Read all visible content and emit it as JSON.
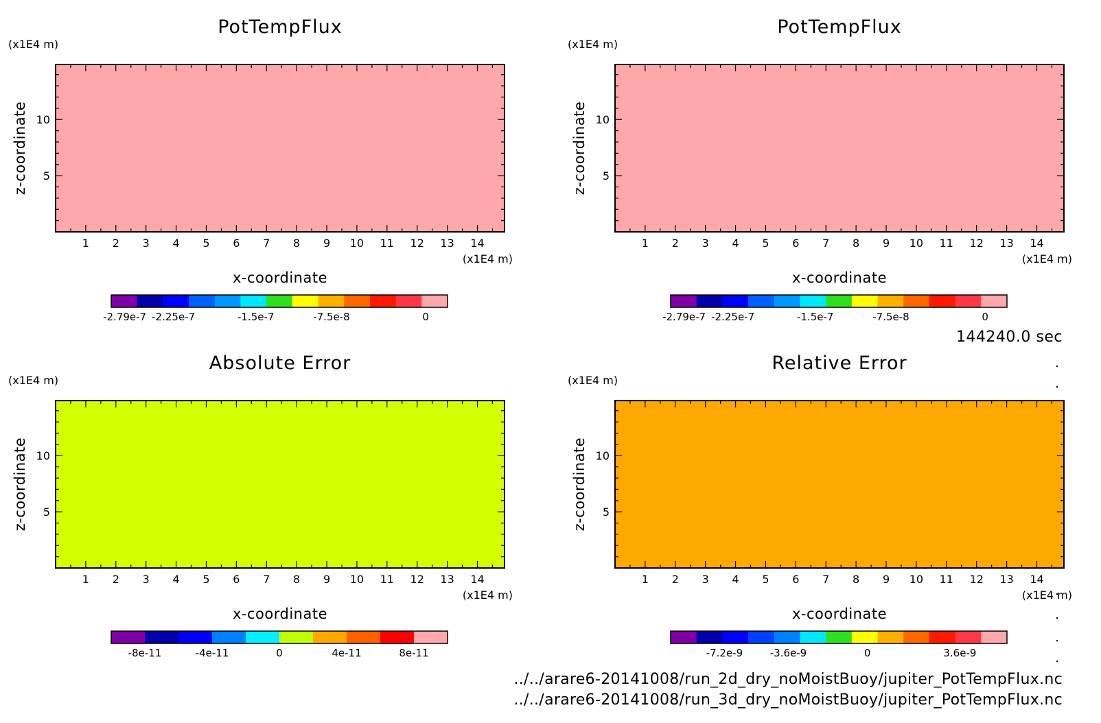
{
  "colors": {
    "pink": "#ffa8ac",
    "yellow_green": "#d4ff00",
    "orange": "#ffa800",
    "frame": "#000000"
  },
  "time_label": "144240.0 sec",
  "file_paths": [
    "../../arare6-20141008/run_2d_dry_noMoistBuoy/jupiter_PotTempFlux.nc",
    "../../arare6-20141008/run_3d_dry_noMoistBuoy/jupiter_PotTempFlux.nc"
  ],
  "chart_data": [
    {
      "type": "heatmap",
      "title": "PotTempFlux",
      "xlabel": "x-coordinate",
      "ylabel": "z-coordinate",
      "x_unit": "(x1E4 m)",
      "y_unit": "(x1E4 m)",
      "xlim": [
        0,
        14.9
      ],
      "ylim": [
        0,
        14.9
      ],
      "x_ticks": [
        "1",
        "2",
        "3",
        "4",
        "5",
        "6",
        "7",
        "8",
        "9",
        "10",
        "11",
        "12",
        "13",
        "14"
      ],
      "y_ticks": [
        "5",
        "10"
      ],
      "field_color": "#ffa8ac",
      "field_value": 0,
      "colorbar": {
        "colors": [
          "#8000a8",
          "#0000aa",
          "#0000ff",
          "#0060ff",
          "#0098ff",
          "#00e8ff",
          "#30e020",
          "#ffff00",
          "#ffb000",
          "#ff6800",
          "#ff1800",
          "#ff3848",
          "#ffa8ac"
        ],
        "labels": [
          "-2.79e-7",
          "-2.25e-7",
          "-1.5e-7",
          "-7.5e-8",
          "0"
        ]
      }
    },
    {
      "type": "heatmap",
      "title": "PotTempFlux",
      "xlabel": "x-coordinate",
      "ylabel": "z-coordinate",
      "x_unit": "(x1E4 m)",
      "y_unit": "(x1E4 m)",
      "xlim": [
        0,
        14.9
      ],
      "ylim": [
        0,
        14.9
      ],
      "x_ticks": [
        "1",
        "2",
        "3",
        "4",
        "5",
        "6",
        "7",
        "8",
        "9",
        "10",
        "11",
        "12",
        "13",
        "14"
      ],
      "y_ticks": [
        "5",
        "10"
      ],
      "field_color": "#ffa8ac",
      "field_value": 0,
      "colorbar": {
        "colors": [
          "#8000a8",
          "#0000aa",
          "#0000ff",
          "#0060ff",
          "#0098ff",
          "#00e8ff",
          "#30e020",
          "#ffff00",
          "#ffb000",
          "#ff6800",
          "#ff1800",
          "#ff3848",
          "#ffa8ac"
        ],
        "labels": [
          "-2.79e-7",
          "-2.25e-7",
          "-1.5e-7",
          "-7.5e-8",
          "0"
        ]
      }
    },
    {
      "type": "heatmap",
      "title": "Absolute Error",
      "xlabel": "x-coordinate",
      "ylabel": "z-coordinate",
      "x_unit": "(x1E4 m)",
      "y_unit": "(x1E4 m)",
      "xlim": [
        0,
        14.9
      ],
      "ylim": [
        0,
        14.9
      ],
      "x_ticks": [
        "1",
        "2",
        "3",
        "4",
        "5",
        "6",
        "7",
        "8",
        "9",
        "10",
        "11",
        "12",
        "13",
        "14"
      ],
      "y_ticks": [
        "5",
        "10"
      ],
      "field_color": "#d4ff00",
      "field_value": 0,
      "colorbar": {
        "colors": [
          "#8000a8",
          "#0000aa",
          "#0000ff",
          "#0080ff",
          "#00f0ff",
          "#c0ff00",
          "#ffa800",
          "#ff6000",
          "#ff0000",
          "#ffa8ac"
        ],
        "labels": [
          "-8e-11",
          "-4e-11",
          "0",
          "4e-11",
          "8e-11"
        ]
      }
    },
    {
      "type": "heatmap",
      "title": "Relative Error",
      "xlabel": "x-coordinate",
      "ylabel": "z-coordinate",
      "x_unit": "(x1E4 m)",
      "y_unit": "(x1E4 m)",
      "xlim": [
        0,
        14.9
      ],
      "ylim": [
        0,
        14.9
      ],
      "x_ticks": [
        "1",
        "2",
        "3",
        "4",
        "5",
        "6",
        "7",
        "8",
        "9",
        "10",
        "11",
        "12",
        "13",
        "14"
      ],
      "y_ticks": [
        "5",
        "10"
      ],
      "field_color": "#ffa800",
      "field_value": 0,
      "colorbar": {
        "colors": [
          "#8000a8",
          "#0000aa",
          "#0000ff",
          "#0040ff",
          "#0080ff",
          "#00e8ff",
          "#30e020",
          "#ffff00",
          "#ffb000",
          "#ff6800",
          "#ff1800",
          "#ff3848",
          "#ffa8ac"
        ],
        "labels": [
          "-7.2e-9",
          "-3.6e-9",
          "0",
          "3.6e-9"
        ]
      }
    }
  ]
}
